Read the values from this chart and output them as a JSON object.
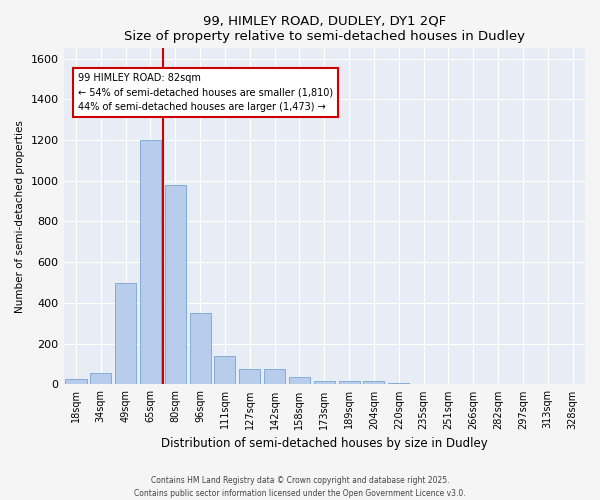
{
  "title": "99, HIMLEY ROAD, DUDLEY, DY1 2QF",
  "subtitle": "Size of property relative to semi-detached houses in Dudley",
  "xlabel": "Distribution of semi-detached houses by size in Dudley",
  "ylabel": "Number of semi-detached properties",
  "categories": [
    "18sqm",
    "34sqm",
    "49sqm",
    "65sqm",
    "80sqm",
    "96sqm",
    "111sqm",
    "127sqm",
    "142sqm",
    "158sqm",
    "173sqm",
    "189sqm",
    "204sqm",
    "220sqm",
    "235sqm",
    "251sqm",
    "266sqm",
    "282sqm",
    "297sqm",
    "313sqm",
    "328sqm"
  ],
  "values": [
    25,
    55,
    500,
    1200,
    980,
    350,
    140,
    75,
    75,
    35,
    18,
    18,
    18,
    5,
    0,
    0,
    0,
    0,
    0,
    0,
    0
  ],
  "bar_color": "#b8cceb",
  "bar_edgecolor": "#6699cc",
  "background_color": "#e8edf5",
  "grid_color": "#ffffff",
  "vline_color": "#cc0000",
  "vline_pos": 3.5,
  "annotation_text": "99 HIMLEY ROAD: 82sqm\n← 54% of semi-detached houses are smaller (1,810)\n44% of semi-detached houses are larger (1,473) →",
  "annotation_box_color": "#ffffff",
  "annotation_box_edgecolor": "#cc0000",
  "ylim": [
    0,
    1650
  ],
  "yticks": [
    0,
    200,
    400,
    600,
    800,
    1000,
    1200,
    1400,
    1600
  ],
  "footer_line1": "Contains HM Land Registry data © Crown copyright and database right 2025.",
  "footer_line2": "Contains public sector information licensed under the Open Government Licence v3.0."
}
